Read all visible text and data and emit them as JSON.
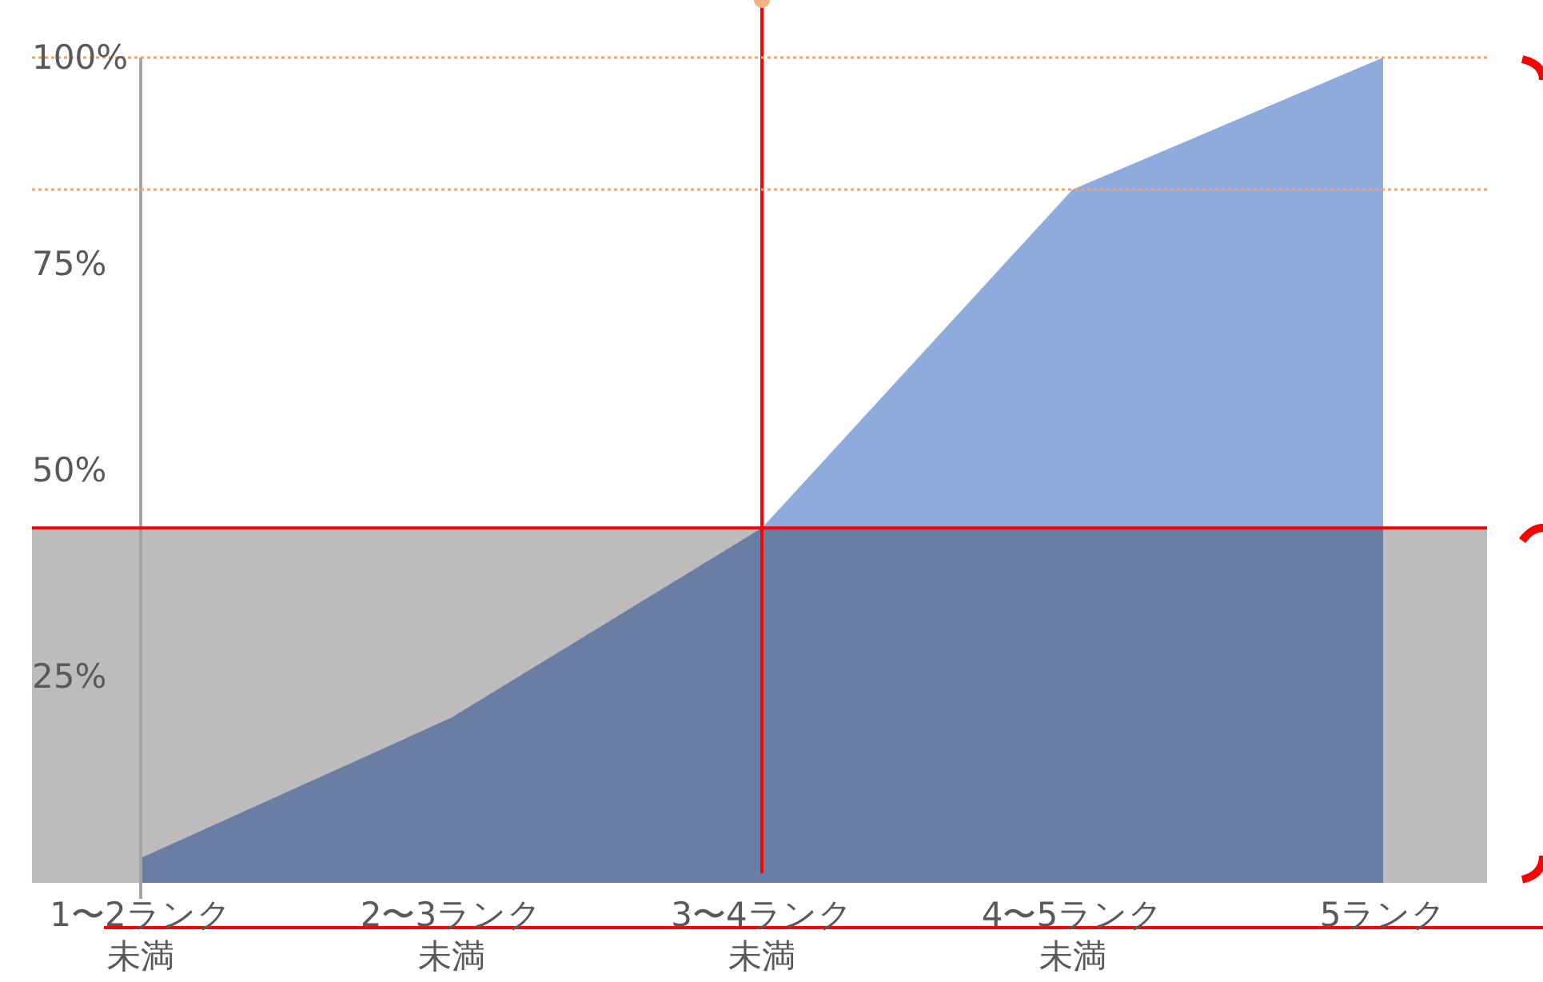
{
  "chart_data": {
    "type": "area",
    "categories": [
      "1〜2ランク未満",
      "2〜3ランク未満",
      "3〜4ランク未満",
      "4〜5ランク未満",
      "5ランク"
    ],
    "values": [
      3,
      20,
      43,
      84,
      100
    ],
    "color": "#8faadc",
    "ylim": [
      0,
      100
    ],
    "yticks": [
      {
        "value": 25,
        "label": "25%"
      },
      {
        "value": 50,
        "label": "50%"
      },
      {
        "value": 75,
        "label": "75%"
      },
      {
        "value": 100,
        "label": "100%"
      }
    ],
    "bands": [
      {
        "axis": "y",
        "from": 0,
        "to": 43,
        "color": "#bdbbbc"
      }
    ],
    "ref_lines": [
      {
        "axis": "y",
        "value": 43,
        "color": "#ff0000"
      },
      {
        "axis": "x",
        "value": "3〜4ランク未満",
        "color": "#ff0000"
      },
      {
        "axis": "y",
        "value": 100,
        "color": "#f4a460",
        "line_style": "dotted"
      },
      {
        "axis": "y",
        "value": 84,
        "color": "#f4a460",
        "line_style": "dotted"
      }
    ]
  }
}
